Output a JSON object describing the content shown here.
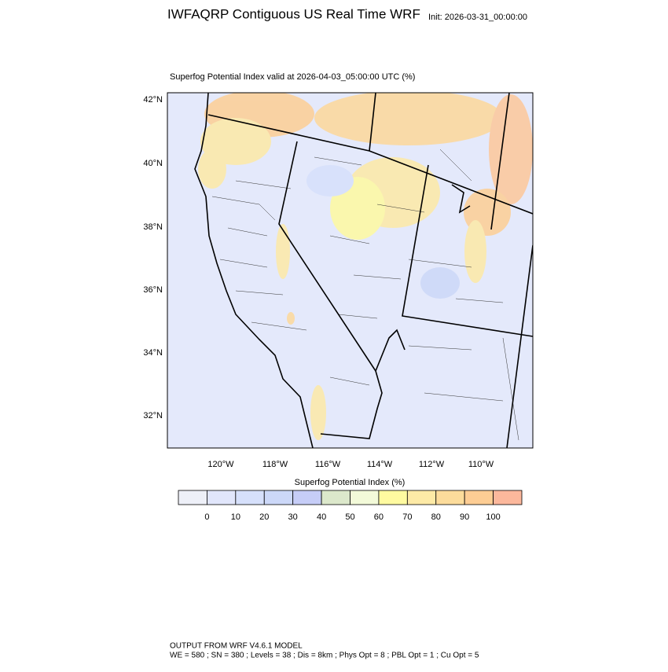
{
  "header": {
    "title": "IWFAQRP Contiguous US Real Time WRF",
    "init": "Init: 2026-03-31_00:00:00"
  },
  "map": {
    "subtitle": "Superfog Potential Index valid at 2026-04-03_05:00:00 UTC   (%)",
    "lat_labels": [
      "42°N",
      "40°N",
      "38°N",
      "36°N",
      "34°N",
      "32°N"
    ],
    "lon_labels": [
      "120°W",
      "118°W",
      "116°W",
      "114°W",
      "112°W",
      "110°W"
    ]
  },
  "colorbar": {
    "title": "Superfog Potential Index  (%)",
    "levels": [
      0,
      10,
      20,
      30,
      40,
      50,
      60,
      70,
      80,
      90,
      100
    ],
    "colors": [
      "#eef0f8",
      "#e1e6fb",
      "#d6e0fb",
      "#ccd8f8",
      "#c6cdf7",
      "#dce8cb",
      "#f3fad9",
      "#fffaa0",
      "#fdeaa6",
      "#fcdc9b",
      "#fdcd94",
      "#fcb89c"
    ]
  },
  "footer": {
    "line1": "OUTPUT FROM WRF V4.6.1 MODEL",
    "line2": "WE = 580 ; SN = 380 ; Levels = 38 ; Dis = 8km ; Phys Opt = 8 ; PBL Opt = 1 ; Cu Opt = 5"
  }
}
